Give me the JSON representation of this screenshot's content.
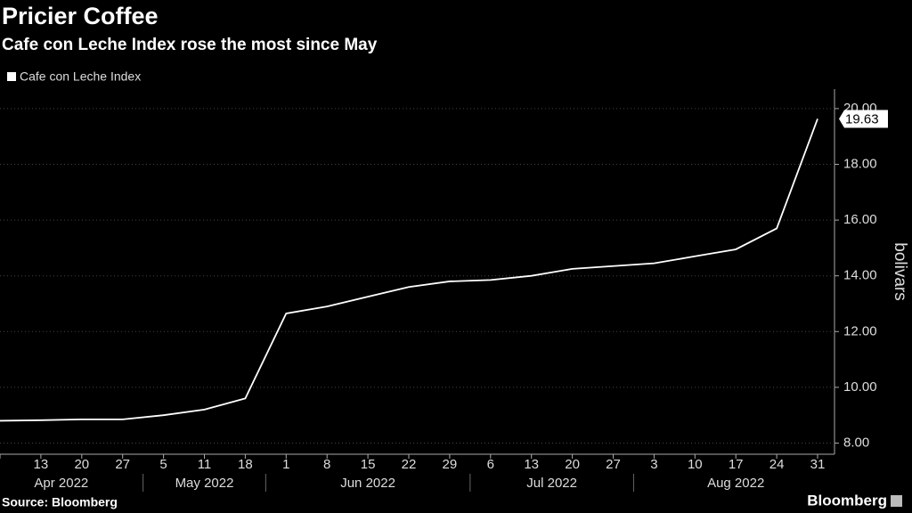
{
  "chart_data": {
    "type": "line",
    "title": "Pricier Coffee",
    "subtitle": "Cafe con Leche Index rose the most since May",
    "categories": [
      null,
      "13",
      "20",
      "27",
      "5",
      "11",
      "18",
      "1",
      "8",
      "15",
      "22",
      "29",
      "6",
      "13",
      "20",
      "27",
      "3",
      "10",
      "17",
      "24",
      "31"
    ],
    "months": [
      "Apr 2022",
      "May 2022",
      "Jun 2022",
      "Jul 2022",
      "Aug 2022"
    ],
    "series": [
      {
        "name": "Cafe con Leche Index",
        "color": "#ffffff",
        "values": [
          8.8,
          8.82,
          8.85,
          8.85,
          9.0,
          9.2,
          9.6,
          12.65,
          12.9,
          13.25,
          13.6,
          13.8,
          13.85,
          14.0,
          14.25,
          14.35,
          14.45,
          14.7,
          14.95,
          15.7,
          19.63
        ]
      }
    ],
    "last_value_label": {
      "value": 19.63,
      "label": "19.63"
    },
    "y_label": "bolivars",
    "ylim": [
      7.6,
      20.7
    ],
    "yticks": [
      {
        "value": 8,
        "label": "8.00"
      },
      {
        "value": 10,
        "label": "10.00"
      },
      {
        "value": 12,
        "label": "12.00"
      },
      {
        "value": 14,
        "label": "14.00"
      },
      {
        "value": 16,
        "label": "16.00"
      },
      {
        "value": 18,
        "label": "18.00"
      },
      {
        "value": 20,
        "label": "20.00"
      }
    ],
    "grid": true,
    "source": "Source: Bloomberg",
    "brand": "Bloomberg"
  }
}
